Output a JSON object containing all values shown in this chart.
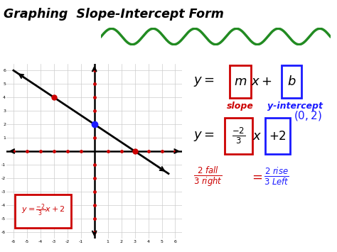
{
  "title": "Graphing  Slope-Intercept Form",
  "bg_color": "#ffffff",
  "grid_range": [
    -6,
    6
  ],
  "slope": -0.6667,
  "intercept": 2,
  "points": [
    [
      -3,
      4
    ],
    [
      0,
      2
    ],
    [
      3,
      0
    ]
  ],
  "wavy_color": "#228B22",
  "red_color": "#cc0000",
  "blue_color": "#1a1aff",
  "black_color": "#000000"
}
